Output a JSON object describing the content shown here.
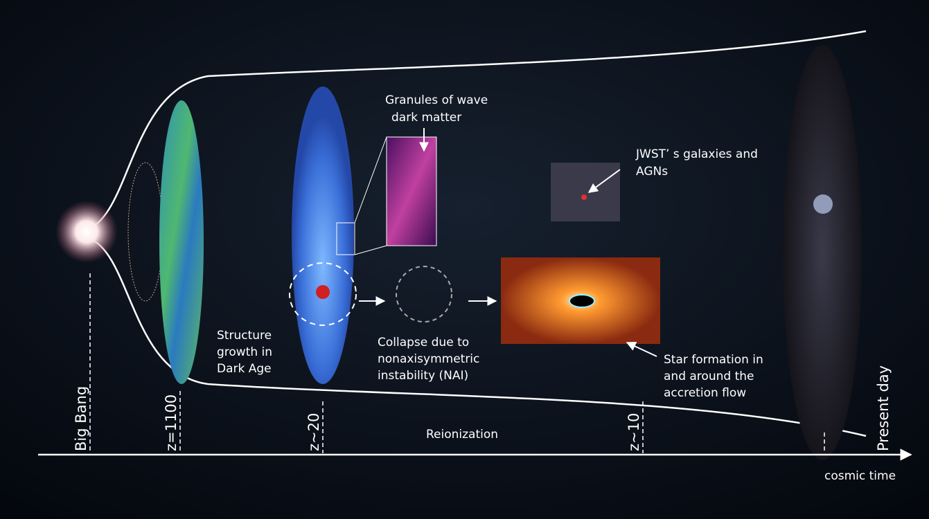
{
  "annotations": {
    "granules": {
      "lines": [
        "Granules of  wave",
        "dark matter"
      ]
    },
    "jwst": {
      "lines": [
        "JWST’ s galaxies and",
        "AGNs"
      ]
    },
    "structure": {
      "lines": [
        "Structure",
        "growth in",
        "Dark Age"
      ]
    },
    "collapse": {
      "lines": [
        "Collapse due to",
        "nonaxisymmetric",
        "instability (NAI)"
      ]
    },
    "star_formation": {
      "lines": [
        "Star formation in",
        "and around the",
        "accretion flow"
      ]
    }
  },
  "timeline": {
    "axis_label": "cosmic time",
    "era": "Reionization",
    "markers": [
      "Big Bang",
      "z=1100",
      "z~20",
      "z~10",
      "Present day"
    ]
  }
}
